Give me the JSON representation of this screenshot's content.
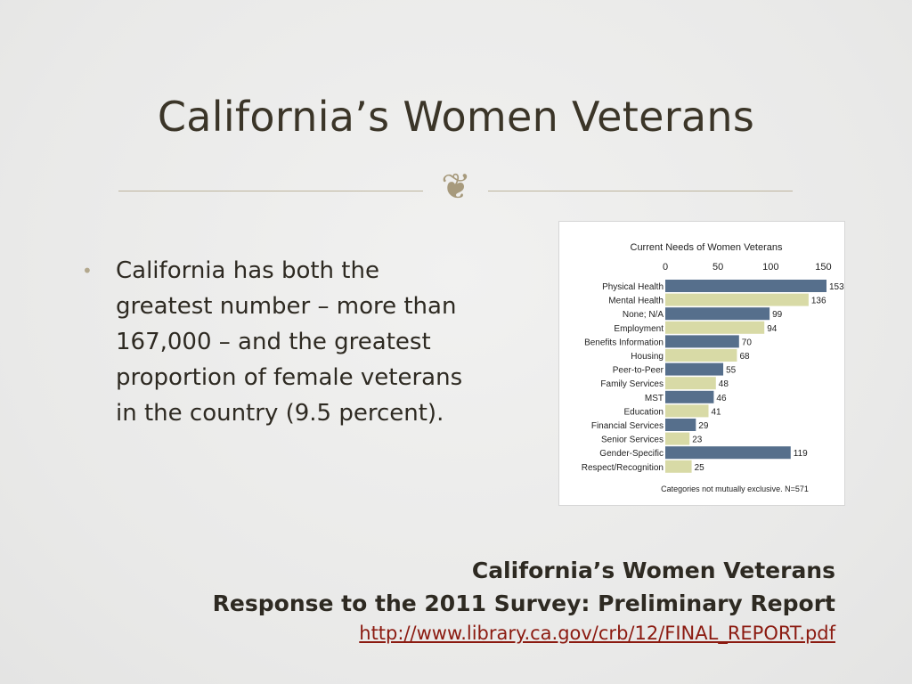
{
  "slide": {
    "title": "California’s Women Veterans",
    "ornament": "❦"
  },
  "bullets": [
    {
      "marker": "•",
      "text": "California has both the greatest number – more than 167,000 – and the greatest proportion of female veterans in the country (9.5 percent)."
    }
  ],
  "source": {
    "line1": "California’s Women Veterans",
    "line2": "Response to the 2011 Survey: Preliminary Report",
    "link": "http://www.library.ca.gov/crb/12/FINAL_REPORT.pdf"
  },
  "colors": {
    "bar_dark": "#566f8c",
    "bar_light": "#d8daa6",
    "accent": "#a79a7c",
    "link": "#8b1a10"
  },
  "chart_data": {
    "type": "bar",
    "orientation": "horizontal",
    "title": "Current Needs of Women Veterans",
    "categories": [
      "Physical Health",
      "Mental Health",
      "None; N/A",
      "Employment",
      "Benefits Information",
      "Housing",
      "Peer-to-Peer",
      "Family Services",
      "MST",
      "Education",
      "Financial Services",
      "Senior Services",
      "Gender-Specific",
      "Respect/Recognition"
    ],
    "values": [
      153,
      136,
      99,
      94,
      70,
      68,
      55,
      48,
      46,
      41,
      29,
      23,
      119,
      25
    ],
    "value_labels": [
      "153",
      "136",
      "99",
      "94",
      "70",
      "68",
      "55",
      "48",
      "46",
      "41",
      "29",
      "23",
      "119",
      "25"
    ],
    "bar_colors": [
      "dark",
      "light",
      "dark",
      "light",
      "dark",
      "light",
      "dark",
      "light",
      "dark",
      "light",
      "dark",
      "light",
      "dark",
      "light"
    ],
    "xticks": [
      0,
      50,
      100,
      150
    ],
    "xtick_labels": [
      "0",
      "50",
      "100",
      "150"
    ],
    "xlim": [
      0,
      153
    ],
    "axis_position": "top",
    "grid": false,
    "footnote": "Categories not mutually exclusive.  N=571"
  }
}
